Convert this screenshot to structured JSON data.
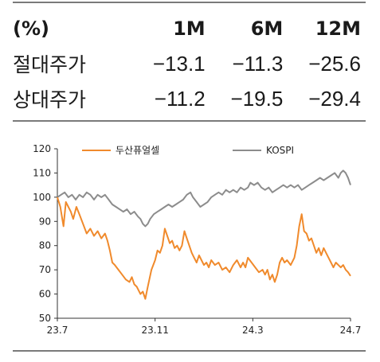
{
  "table": {
    "header": [
      "(%)",
      "1M",
      "6M",
      "12M"
    ],
    "rows": [
      {
        "label": "절대주가",
        "values": [
          "−13.1",
          "−11.3",
          "−25.6"
        ]
      },
      {
        "label": "상대주가",
        "values": [
          "−11.2",
          "−19.5",
          "−29.4"
        ]
      }
    ]
  },
  "chart_data": {
    "type": "line",
    "title": "",
    "xlabel": "",
    "ylabel": "",
    "ylim": [
      50,
      120
    ],
    "yticks": [
      50,
      60,
      70,
      80,
      90,
      100,
      110,
      120
    ],
    "xlim": [
      0,
      12
    ],
    "xticks": [
      {
        "x": 0,
        "label": "23.7"
      },
      {
        "x": 4,
        "label": "23.11"
      },
      {
        "x": 8,
        "label": "24.3"
      },
      {
        "x": 12,
        "label": "24.7"
      }
    ],
    "grid": false,
    "legend": "top",
    "series": [
      {
        "name": "두산퓨얼셀",
        "color": "#f08a2c",
        "points": [
          [
            0.0,
            100
          ],
          [
            0.12,
            96
          ],
          [
            0.25,
            88
          ],
          [
            0.35,
            98
          ],
          [
            0.45,
            96
          ],
          [
            0.55,
            94
          ],
          [
            0.65,
            91
          ],
          [
            0.78,
            96
          ],
          [
            0.9,
            93
          ],
          [
            1.05,
            89
          ],
          [
            1.2,
            85
          ],
          [
            1.35,
            87
          ],
          [
            1.5,
            84
          ],
          [
            1.65,
            86
          ],
          [
            1.8,
            83
          ],
          [
            1.95,
            85
          ],
          [
            2.05,
            82
          ],
          [
            2.15,
            78
          ],
          [
            2.25,
            73
          ],
          [
            2.35,
            72
          ],
          [
            2.5,
            70
          ],
          [
            2.65,
            68
          ],
          [
            2.8,
            66
          ],
          [
            2.95,
            65
          ],
          [
            3.05,
            67
          ],
          [
            3.15,
            64
          ],
          [
            3.25,
            63
          ],
          [
            3.4,
            60
          ],
          [
            3.5,
            61
          ],
          [
            3.6,
            58
          ],
          [
            3.7,
            63
          ],
          [
            3.85,
            70
          ],
          [
            4.0,
            74
          ],
          [
            4.1,
            78
          ],
          [
            4.2,
            77
          ],
          [
            4.3,
            80
          ],
          [
            4.4,
            87
          ],
          [
            4.5,
            84
          ],
          [
            4.6,
            81
          ],
          [
            4.7,
            82
          ],
          [
            4.8,
            79
          ],
          [
            4.9,
            80
          ],
          [
            5.0,
            78
          ],
          [
            5.1,
            80
          ],
          [
            5.2,
            86
          ],
          [
            5.3,
            83
          ],
          [
            5.4,
            80
          ],
          [
            5.5,
            77
          ],
          [
            5.6,
            75
          ],
          [
            5.7,
            73
          ],
          [
            5.8,
            76
          ],
          [
            5.9,
            74
          ],
          [
            6.0,
            72
          ],
          [
            6.1,
            73
          ],
          [
            6.2,
            71
          ],
          [
            6.3,
            74
          ],
          [
            6.45,
            72
          ],
          [
            6.6,
            73
          ],
          [
            6.75,
            70
          ],
          [
            6.9,
            71
          ],
          [
            7.05,
            69
          ],
          [
            7.2,
            72
          ],
          [
            7.35,
            74
          ],
          [
            7.5,
            71
          ],
          [
            7.6,
            73
          ],
          [
            7.7,
            71
          ],
          [
            7.8,
            75
          ],
          [
            7.95,
            73
          ],
          [
            8.1,
            71
          ],
          [
            8.25,
            69
          ],
          [
            8.4,
            70
          ],
          [
            8.5,
            68
          ],
          [
            8.6,
            70
          ],
          [
            8.7,
            66
          ],
          [
            8.8,
            68
          ],
          [
            8.9,
            65
          ],
          [
            9.0,
            68
          ],
          [
            9.1,
            73
          ],
          [
            9.2,
            75
          ],
          [
            9.3,
            73
          ],
          [
            9.4,
            74
          ],
          [
            9.55,
            72
          ],
          [
            9.7,
            75
          ],
          [
            9.8,
            80
          ],
          [
            9.9,
            88
          ],
          [
            10.0,
            93
          ],
          [
            10.1,
            86
          ],
          [
            10.2,
            85
          ],
          [
            10.3,
            82
          ],
          [
            10.4,
            83
          ],
          [
            10.5,
            80
          ],
          [
            10.6,
            77
          ],
          [
            10.7,
            79
          ],
          [
            10.8,
            76
          ],
          [
            10.9,
            79
          ],
          [
            11.0,
            77
          ],
          [
            11.1,
            75
          ],
          [
            11.2,
            73
          ],
          [
            11.3,
            71
          ],
          [
            11.4,
            73
          ],
          [
            11.5,
            72
          ],
          [
            11.6,
            71
          ],
          [
            11.7,
            72
          ],
          [
            11.8,
            70
          ],
          [
            11.9,
            69
          ],
          [
            12.0,
            67.5
          ]
        ]
      },
      {
        "name": "KOSPI",
        "color": "#8c8c8c",
        "points": [
          [
            0.0,
            100
          ],
          [
            0.15,
            101
          ],
          [
            0.3,
            102
          ],
          [
            0.45,
            100
          ],
          [
            0.6,
            101
          ],
          [
            0.75,
            99
          ],
          [
            0.9,
            101
          ],
          [
            1.05,
            100
          ],
          [
            1.2,
            102
          ],
          [
            1.35,
            101
          ],
          [
            1.5,
            99
          ],
          [
            1.65,
            101
          ],
          [
            1.8,
            100
          ],
          [
            1.95,
            101
          ],
          [
            2.1,
            99
          ],
          [
            2.25,
            97
          ],
          [
            2.4,
            96
          ],
          [
            2.55,
            95
          ],
          [
            2.7,
            94
          ],
          [
            2.85,
            95
          ],
          [
            3.0,
            93
          ],
          [
            3.15,
            94
          ],
          [
            3.3,
            92
          ],
          [
            3.4,
            91
          ],
          [
            3.5,
            89
          ],
          [
            3.6,
            88
          ],
          [
            3.7,
            89
          ],
          [
            3.8,
            91
          ],
          [
            3.95,
            93
          ],
          [
            4.1,
            94
          ],
          [
            4.25,
            95
          ],
          [
            4.4,
            96
          ],
          [
            4.55,
            97
          ],
          [
            4.7,
            96
          ],
          [
            4.85,
            97
          ],
          [
            5.0,
            98
          ],
          [
            5.15,
            99
          ],
          [
            5.3,
            101
          ],
          [
            5.45,
            102
          ],
          [
            5.55,
            100
          ],
          [
            5.7,
            98
          ],
          [
            5.85,
            96
          ],
          [
            6.0,
            97
          ],
          [
            6.15,
            98
          ],
          [
            6.3,
            100
          ],
          [
            6.45,
            101
          ],
          [
            6.6,
            102
          ],
          [
            6.75,
            101
          ],
          [
            6.9,
            103
          ],
          [
            7.05,
            102
          ],
          [
            7.2,
            103
          ],
          [
            7.35,
            102
          ],
          [
            7.5,
            104
          ],
          [
            7.65,
            103
          ],
          [
            7.8,
            104
          ],
          [
            7.9,
            106
          ],
          [
            8.05,
            105
          ],
          [
            8.2,
            106
          ],
          [
            8.35,
            104
          ],
          [
            8.5,
            103
          ],
          [
            8.65,
            104
          ],
          [
            8.8,
            102
          ],
          [
            8.95,
            103
          ],
          [
            9.1,
            104
          ],
          [
            9.25,
            105
          ],
          [
            9.4,
            104
          ],
          [
            9.55,
            105
          ],
          [
            9.7,
            104
          ],
          [
            9.85,
            105
          ],
          [
            10.0,
            103
          ],
          [
            10.15,
            104
          ],
          [
            10.3,
            105
          ],
          [
            10.45,
            106
          ],
          [
            10.6,
            107
          ],
          [
            10.75,
            108
          ],
          [
            10.9,
            107
          ],
          [
            11.05,
            108
          ],
          [
            11.2,
            109
          ],
          [
            11.35,
            110
          ],
          [
            11.5,
            108
          ],
          [
            11.6,
            110
          ],
          [
            11.7,
            111
          ],
          [
            11.8,
            110
          ],
          [
            11.9,
            108
          ],
          [
            12.0,
            105
          ]
        ]
      }
    ]
  }
}
